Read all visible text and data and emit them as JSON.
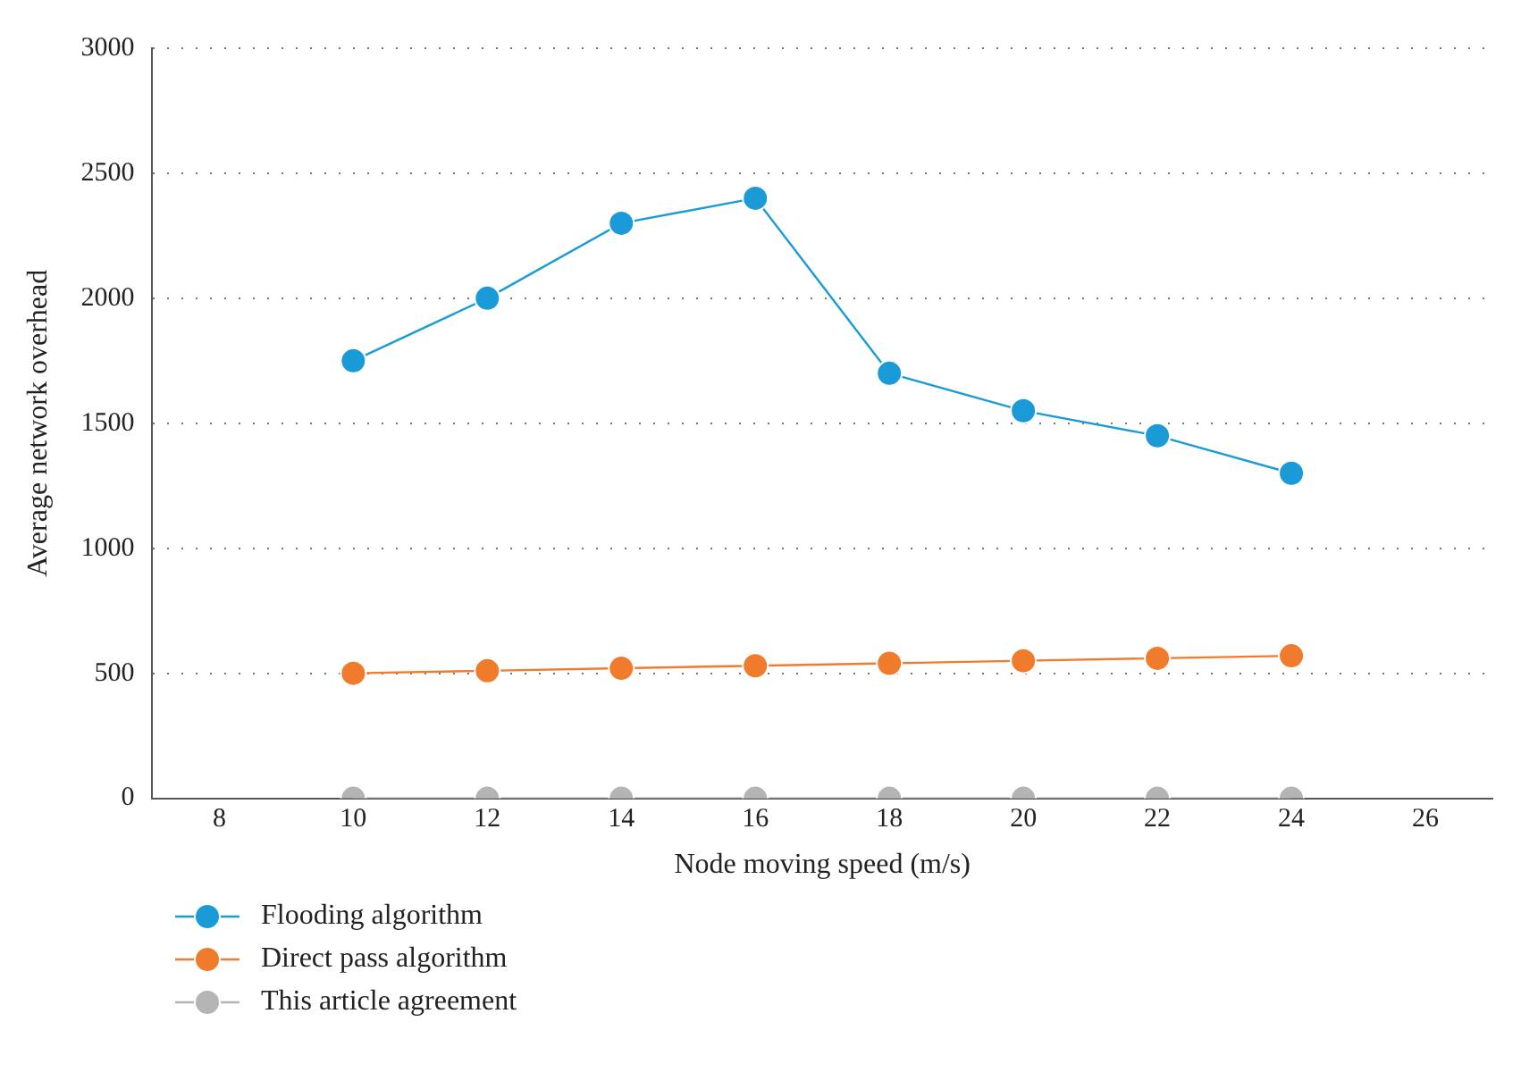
{
  "chart_data": {
    "type": "line",
    "xlabel": "Node moving speed (m/s)",
    "ylabel": "Average network overhead",
    "x": [
      10,
      12,
      14,
      16,
      18,
      20,
      22,
      24
    ],
    "series": [
      {
        "name": "Flooding algorithm",
        "color": "#1a9bd7",
        "values": [
          1750,
          2000,
          2300,
          2400,
          1700,
          1550,
          1450,
          1300
        ]
      },
      {
        "name": "Direct pass algorithm",
        "color": "#f07b2c",
        "values": [
          500,
          510,
          520,
          530,
          540,
          550,
          560,
          570
        ]
      },
      {
        "name": "This article agreement",
        "color": "#b4b4b4",
        "values": [
          0,
          0,
          0,
          0,
          0,
          0,
          0,
          0
        ]
      }
    ],
    "xlim": [
      7,
      27
    ],
    "xticks": [
      8,
      10,
      12,
      14,
      16,
      18,
      20,
      22,
      24,
      26
    ],
    "ylim": [
      0,
      3000
    ],
    "yticks": [
      0,
      500,
      1000,
      1500,
      2000,
      2500,
      3000
    ],
    "grid": "y",
    "legend": "bottom left",
    "marker": "circle",
    "line_style": "solid"
  }
}
